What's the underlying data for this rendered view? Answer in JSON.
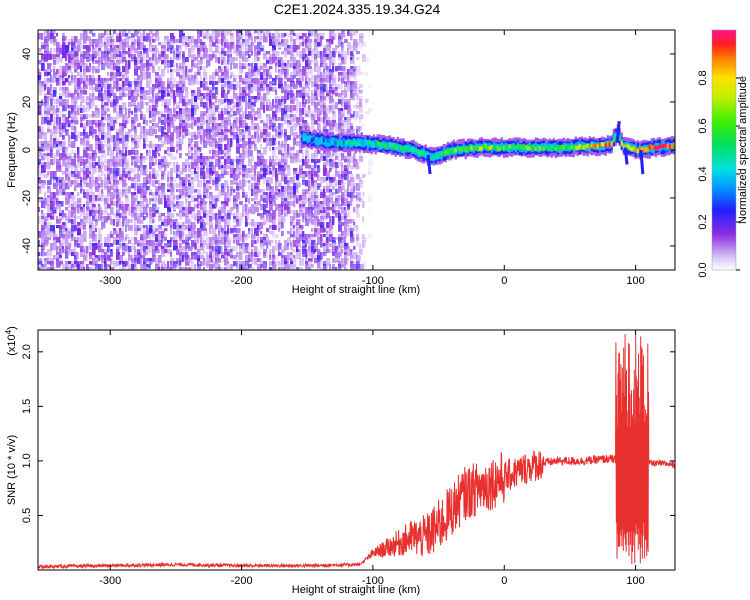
{
  "title": "C2E1.2024.335.19.34.G24",
  "chart_data": [
    {
      "type": "heatmap",
      "xlabel": "Height of straight line (km)",
      "ylabel": "Frequency (Hz)",
      "xlim": [
        -355,
        130
      ],
      "ylim": [
        -50,
        50
      ],
      "xticks": [
        -300,
        -200,
        -100,
        0,
        100
      ],
      "xtick_labels": [
        "-300",
        "-200",
        "-100",
        "0",
        "100"
      ],
      "yticks": [
        -40,
        -20,
        0,
        20,
        40
      ],
      "ytick_labels": [
        "-40",
        "-20",
        "0",
        "20",
        "40"
      ],
      "colorbar": {
        "label": "Normalized spectral amplitude",
        "range": [
          0,
          1
        ],
        "ticks": [
          0.0,
          0.2,
          0.4,
          0.6,
          0.8
        ],
        "tick_labels": [
          "0.0",
          "0.2",
          "0.4",
          "0.6",
          "0.8"
        ]
      },
      "noise_region_xmax": -120,
      "ridge": {
        "x": [
          -155,
          -130,
          -110,
          -90,
          -70,
          -55,
          -40,
          -20,
          0,
          40,
          80,
          85,
          90,
          100,
          130
        ],
        "freq": [
          5,
          3,
          3,
          2,
          0,
          -3,
          0,
          1,
          1,
          1,
          2,
          7,
          2,
          0,
          2
        ],
        "amplitude": [
          0.3,
          0.4,
          0.45,
          0.5,
          0.5,
          0.5,
          0.55,
          0.7,
          0.6,
          0.55,
          0.9,
          0.5,
          0.7,
          0.85,
          0.95
        ]
      }
    },
    {
      "type": "line",
      "xlabel": "Height of straight line (km)",
      "ylabel": "SNR (10 * v/v)",
      "y_multiplier_label": "(x10",
      "y_multiplier_exp": "4",
      "y_multiplier_close": ")",
      "xlim": [
        -355,
        130
      ],
      "ylim": [
        0,
        2.2
      ],
      "xticks": [
        -300,
        -200,
        -100,
        0,
        100
      ],
      "xtick_labels": [
        "-300",
        "-200",
        "-100",
        "0",
        "100"
      ],
      "yticks": [
        0.5,
        1.0,
        1.5,
        2.0
      ],
      "ytick_labels": [
        "0.5",
        "1.0",
        "1.5",
        "2.0"
      ],
      "series": [
        {
          "color": "#e8302e",
          "x": [
            -355,
            -300,
            -250,
            -200,
            -150,
            -110,
            -100,
            -90,
            -80,
            -70,
            -60,
            -50,
            -40,
            -30,
            -20,
            -10,
            0,
            10,
            20,
            30,
            40,
            60,
            80,
            88,
            92,
            95,
            100,
            105,
            110,
            130
          ],
          "y": [
            0.03,
            0.04,
            0.05,
            0.04,
            0.04,
            0.05,
            0.15,
            0.2,
            0.25,
            0.3,
            0.3,
            0.4,
            0.55,
            0.7,
            0.75,
            0.8,
            0.85,
            0.9,
            0.95,
            0.98,
            1.0,
            1.0,
            1.02,
            1.0,
            0.5,
            1.6,
            0.9,
            1.2,
            0.98,
            0.97
          ]
        }
      ]
    }
  ]
}
